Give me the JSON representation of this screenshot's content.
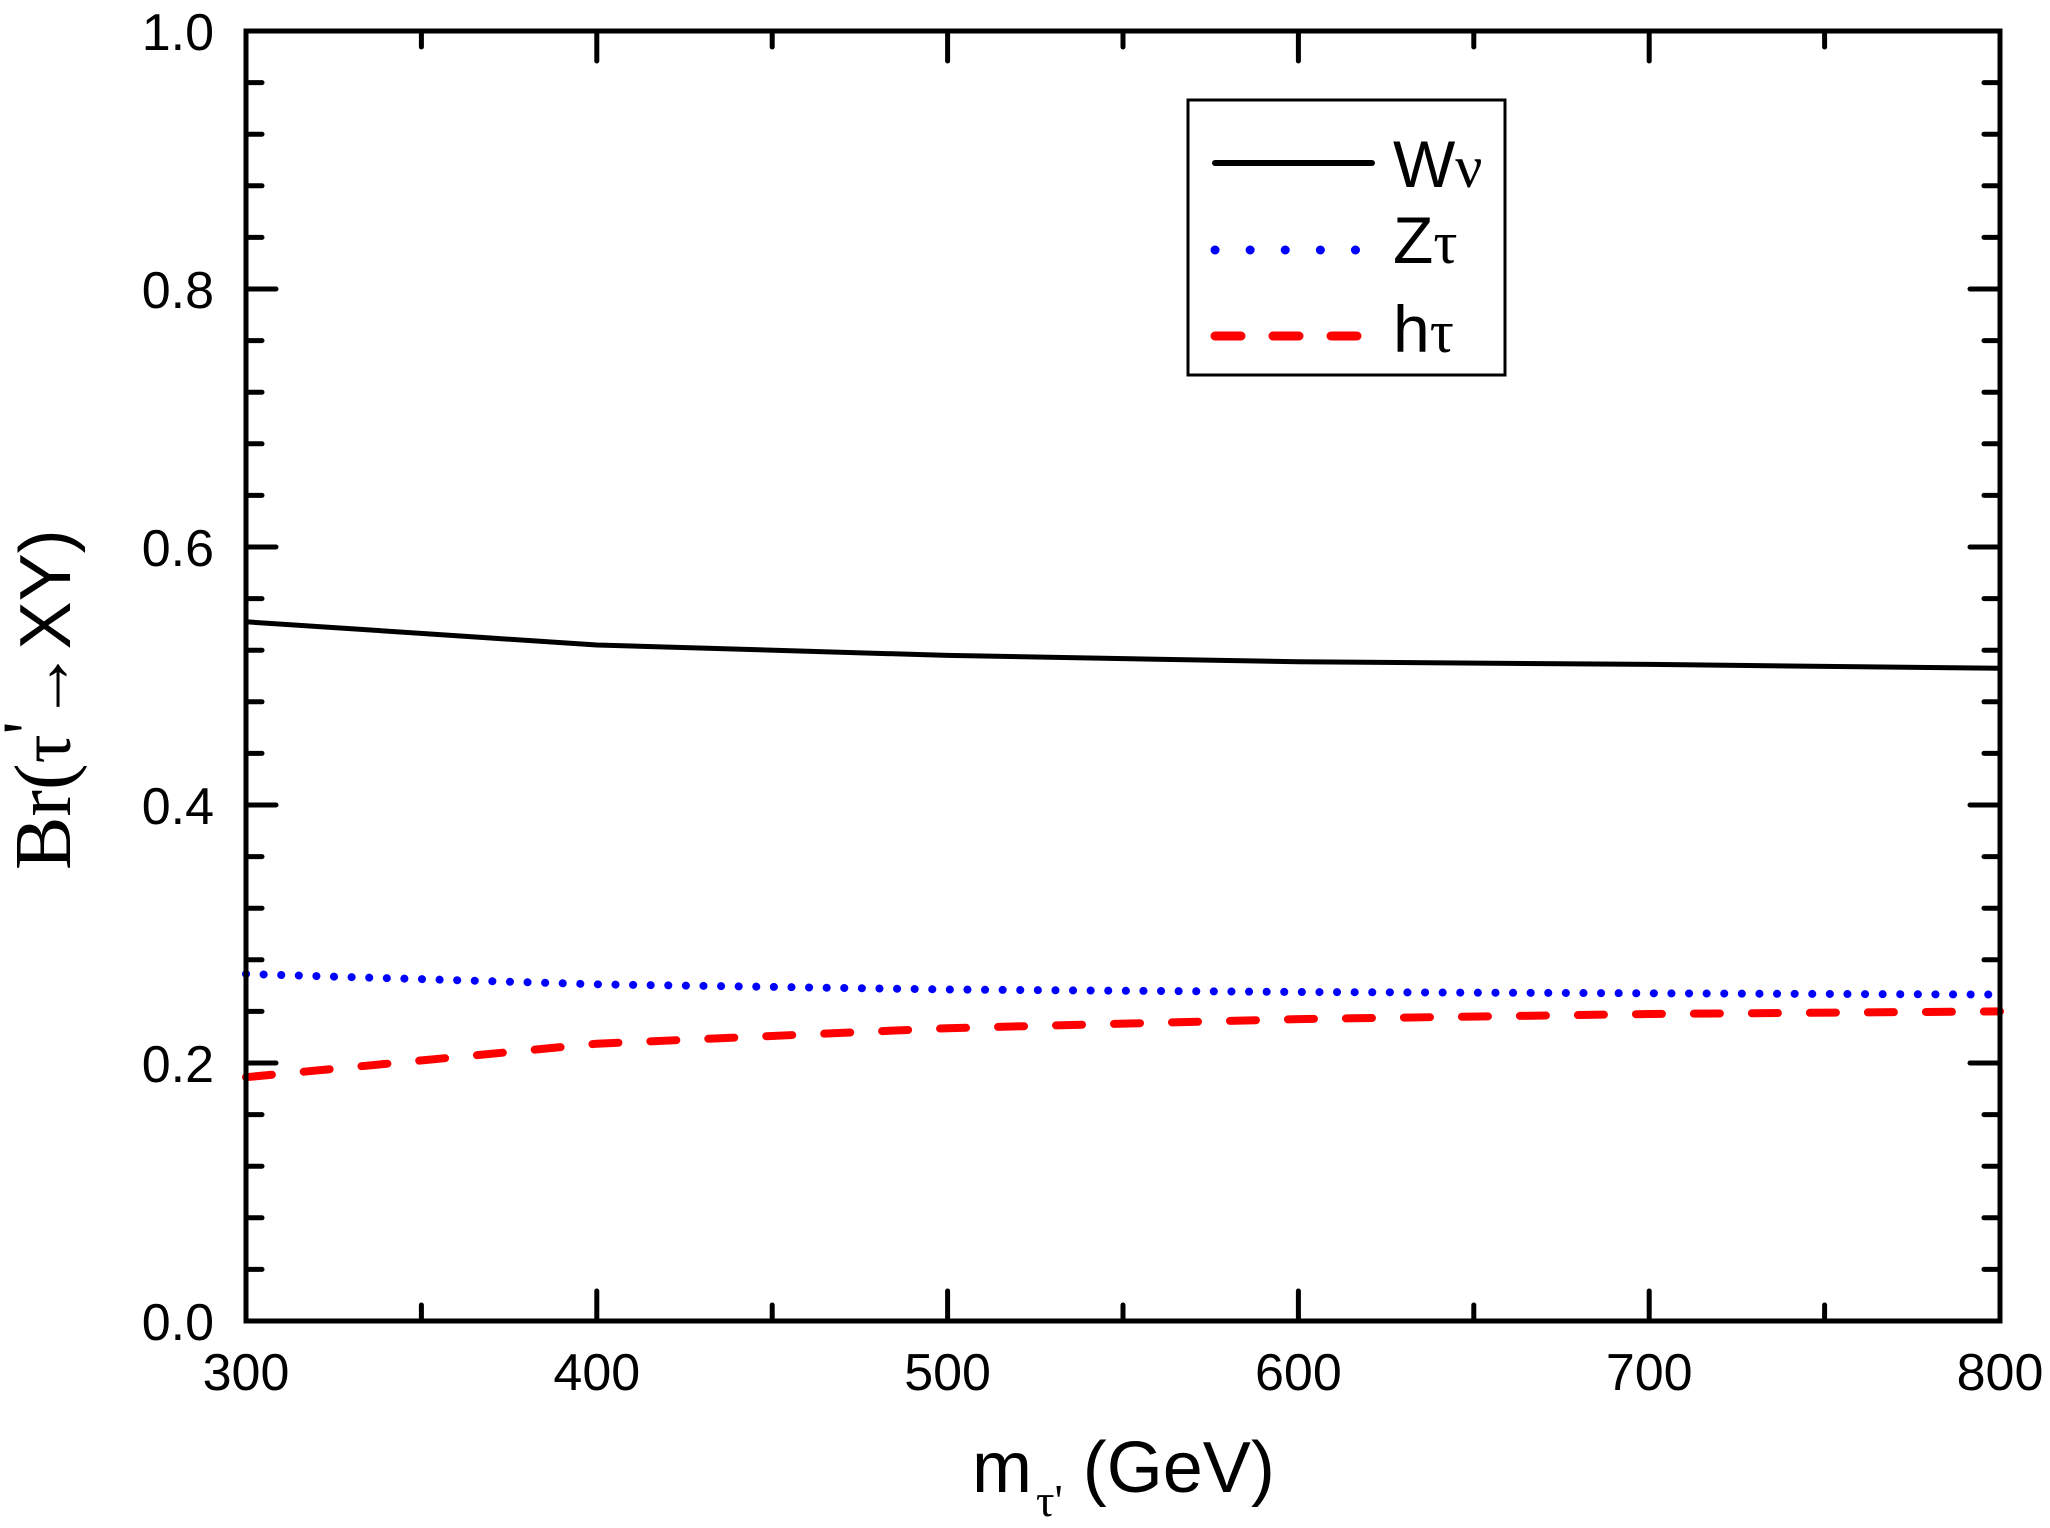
{
  "chart_data": {
    "type": "line",
    "title": "",
    "xlabel": {
      "main": "m",
      "subscript": "τ'",
      "suffix": " (GeV)"
    },
    "ylabel": {
      "prefix": "Br(",
      "particle": "τ",
      "prime": "'",
      "arrow": "→",
      "suffix": "XY)"
    },
    "xlim": [
      300,
      800
    ],
    "ylim": [
      0.0,
      1.0
    ],
    "x_major_ticks": [
      300,
      400,
      500,
      600,
      700,
      800
    ],
    "x_tick_labels": [
      "300",
      "400",
      "500",
      "600",
      "700",
      "800"
    ],
    "x_minor_step": 50,
    "y_major_ticks": [
      0.0,
      0.2,
      0.4,
      0.6,
      0.8,
      1.0
    ],
    "y_tick_labels": [
      "0.0",
      "0.2",
      "0.4",
      "0.6",
      "0.8",
      "1.0"
    ],
    "y_minor_step": 0.04,
    "grid": false,
    "legend_position": "top-right",
    "x": [
      300,
      400,
      500,
      600,
      700,
      800
    ],
    "series": [
      {
        "name": "Wν",
        "label_main": "W",
        "label_greek": "ν",
        "color": "#000000",
        "style": "solid",
        "values": [
          0.542,
          0.524,
          0.516,
          0.511,
          0.509,
          0.506
        ]
      },
      {
        "name": "Zτ",
        "label_main": "Z",
        "label_greek": "τ",
        "color": "#0000ff",
        "style": "dotted",
        "values": [
          0.269,
          0.261,
          0.257,
          0.255,
          0.254,
          0.253
        ]
      },
      {
        "name": "hτ",
        "label_main": "h",
        "label_greek": "τ",
        "color": "#ff0000",
        "style": "dashed",
        "values": [
          0.189,
          0.215,
          0.227,
          0.234,
          0.238,
          0.24
        ]
      }
    ]
  }
}
